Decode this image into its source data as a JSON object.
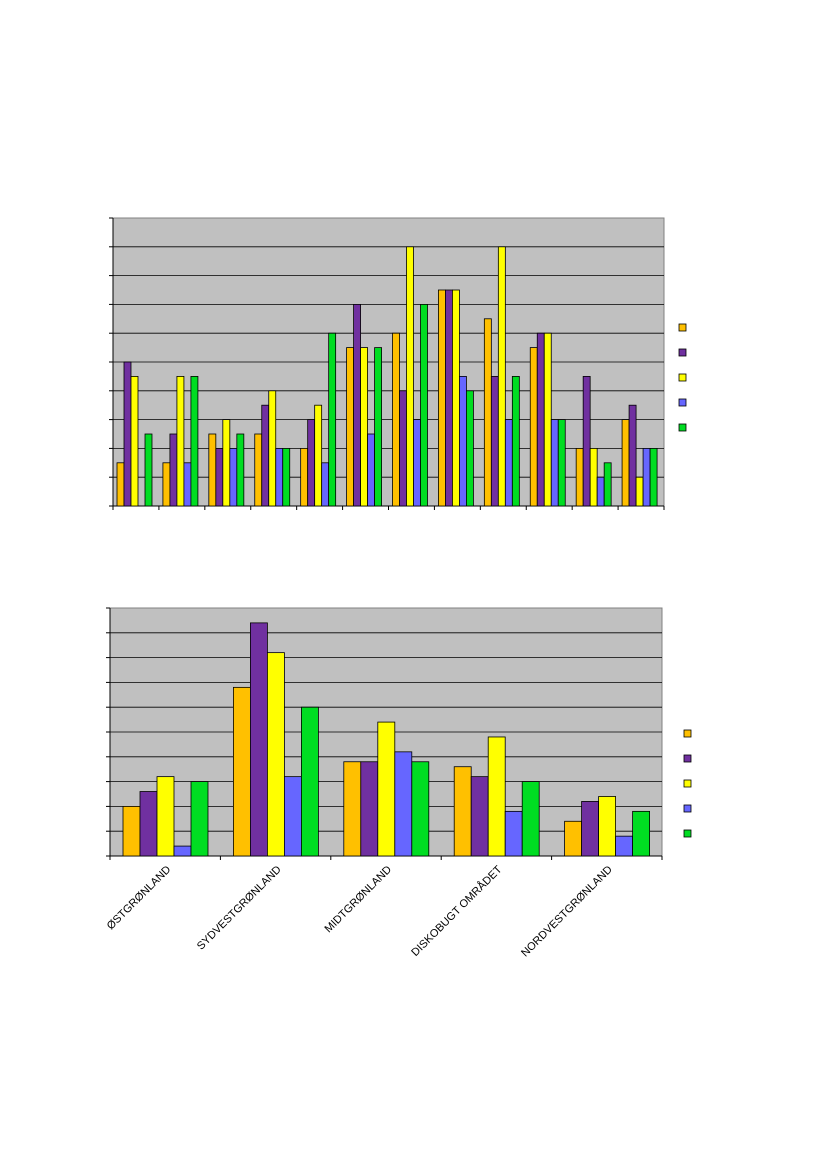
{
  "chart_data": [
    {
      "type": "bar",
      "categories": [
        "",
        "",
        "",
        "",
        "",
        "",
        "",
        "",
        "",
        "",
        "",
        ""
      ],
      "ylim": [
        0,
        10
      ],
      "grid": true,
      "legend": "right",
      "series": [
        {
          "color": "#FFC000",
          "values": [
            1.5,
            1.5,
            2.5,
            2.5,
            2,
            5.5,
            6,
            7.5,
            6.5,
            5.5,
            2,
            3
          ]
        },
        {
          "color": "#7030A0",
          "values": [
            5,
            2.5,
            2,
            3.5,
            3,
            7,
            4,
            7.5,
            4.5,
            6,
            4.5,
            3.5
          ]
        },
        {
          "color": "#FFFF00",
          "values": [
            4.5,
            4.5,
            3,
            4,
            3.5,
            5.5,
            9,
            7.5,
            9,
            6,
            2,
            1
          ]
        },
        {
          "color": "#6666FF",
          "values": [
            0,
            1.5,
            2,
            2,
            1.5,
            2.5,
            3,
            4.5,
            3,
            3,
            1,
            2
          ]
        },
        {
          "color": "#00DD22",
          "values": [
            2.5,
            4.5,
            2.5,
            2,
            6,
            5.5,
            7,
            4,
            4.5,
            3,
            1.5,
            2
          ]
        }
      ]
    },
    {
      "type": "bar",
      "categories": [
        "ØSTGRØNLAND",
        "SYDVESTGRØNLAND",
        "MIDTGRØNLAND",
        "DISKOBUGT OMRÅDET",
        "NORDVESTGRØNLAND"
      ],
      "ylim": [
        0,
        10
      ],
      "grid": true,
      "legend": "right",
      "series": [
        {
          "color": "#FFC000",
          "values": [
            2,
            6.8,
            3.8,
            3.6,
            1.4
          ]
        },
        {
          "color": "#7030A0",
          "values": [
            2.6,
            9.4,
            3.8,
            3.2,
            2.2
          ]
        },
        {
          "color": "#FFFF00",
          "values": [
            3.2,
            8.2,
            5.4,
            4.8,
            2.4
          ]
        },
        {
          "color": "#6666FF",
          "values": [
            0.4,
            3.2,
            4.2,
            1.8,
            0.8
          ]
        },
        {
          "color": "#00DD22",
          "values": [
            3,
            6,
            3.8,
            3,
            1.8
          ]
        }
      ]
    }
  ]
}
